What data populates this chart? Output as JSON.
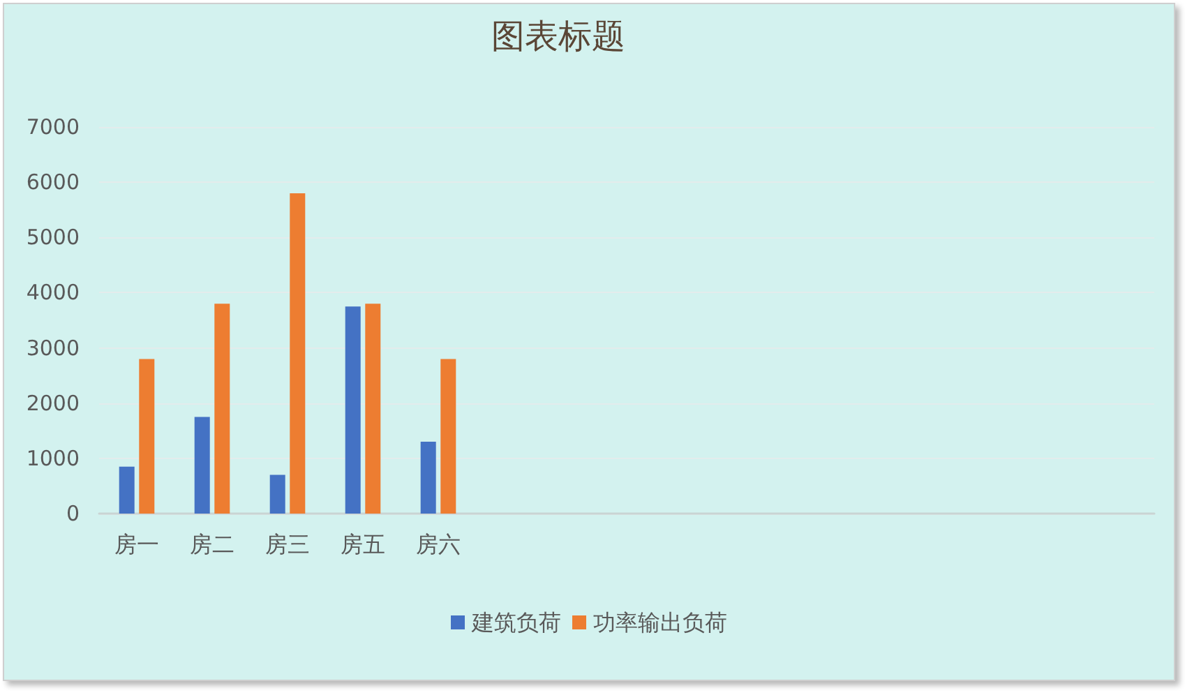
{
  "chart_data": {
    "type": "bar",
    "title": "图表标题",
    "categories": [
      "房一",
      "房二",
      "房三",
      "房五",
      "房六",
      null,
      null,
      null,
      null,
      null,
      null,
      null,
      null,
      null
    ],
    "series": [
      {
        "name": "建筑负荷",
        "color": "#4472c4",
        "values": [
          850,
          1750,
          700,
          3750,
          1300,
          null,
          null,
          null,
          null,
          null,
          null,
          null,
          null,
          null
        ]
      },
      {
        "name": "功率输出负荷",
        "color": "#ed7d31",
        "values": [
          2800,
          3800,
          5800,
          3800,
          2800,
          null,
          null,
          null,
          null,
          null,
          null,
          null,
          null,
          null
        ]
      }
    ],
    "ylim": [
      0,
      7000
    ],
    "yticks": [
      0,
      1000,
      2000,
      3000,
      4000,
      5000,
      6000,
      7000
    ],
    "grid": "y",
    "legend": "bottom"
  }
}
